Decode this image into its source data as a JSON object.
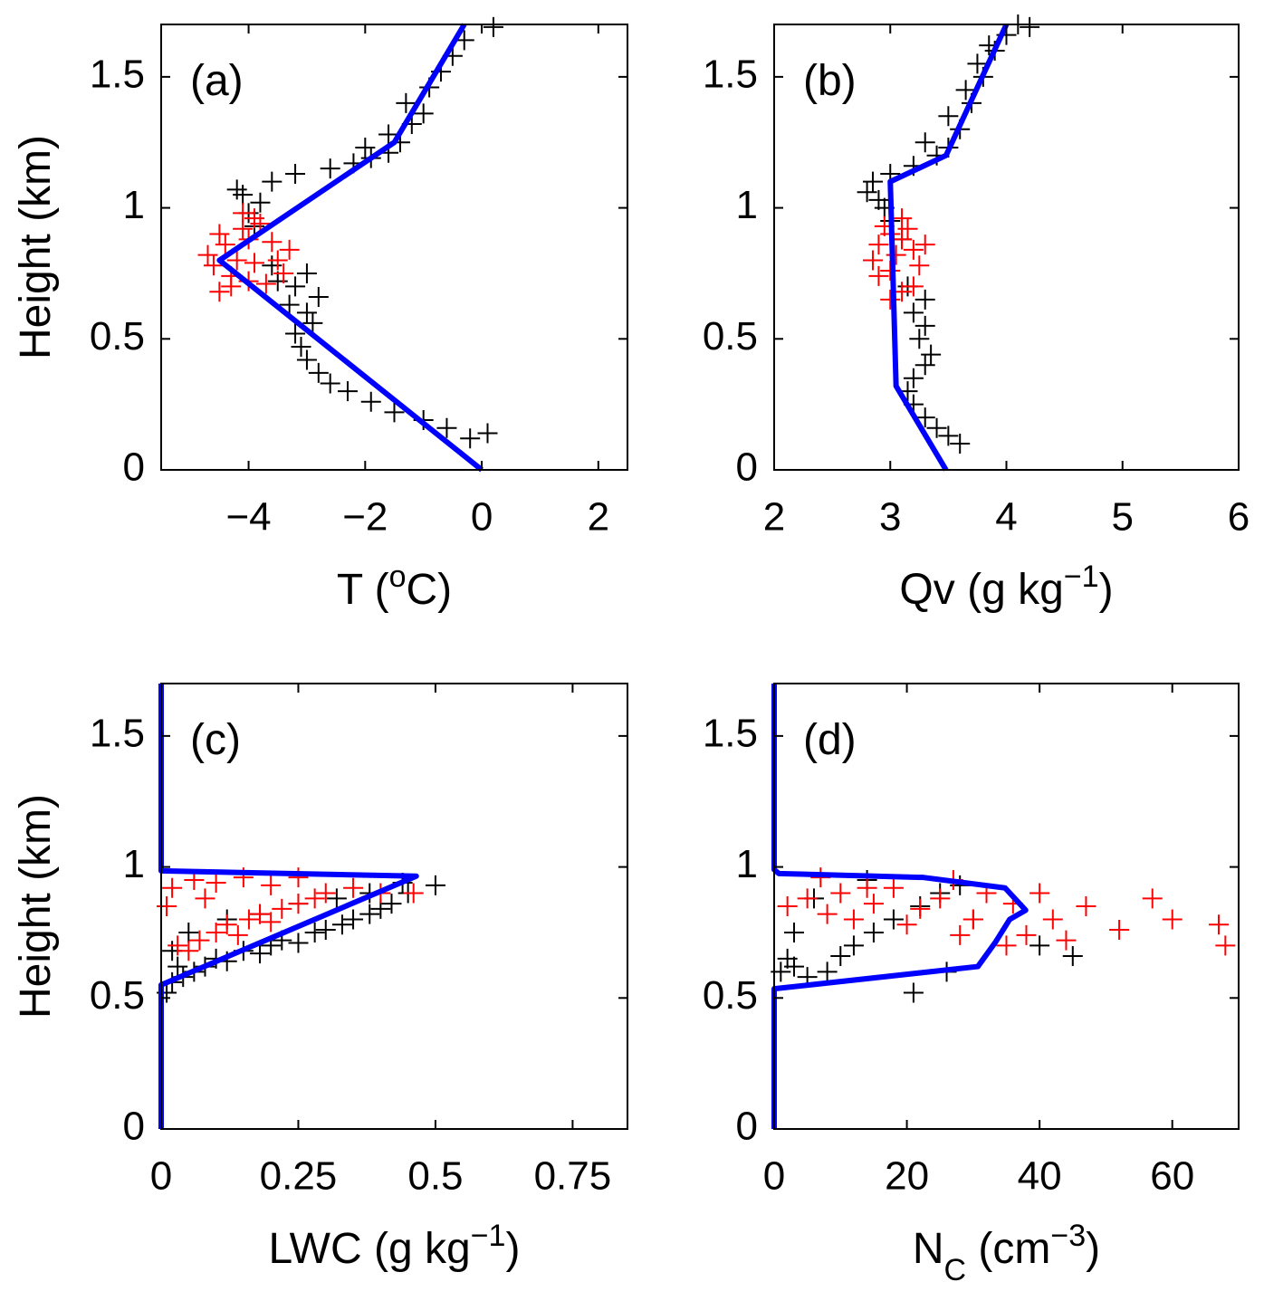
{
  "chart_data": [
    {
      "type": "scatter",
      "label": "(a)",
      "ylabel": "Height (km)",
      "xlabel": [
        {
          "text": "T ("
        },
        {
          "text": "o",
          "script": "sup"
        },
        {
          "text": "C)"
        }
      ],
      "xlim": [
        -5.5,
        2.5
      ],
      "ylim": [
        0,
        1.7
      ],
      "xticks": [
        {
          "value": -4,
          "label": "−4"
        },
        {
          "value": -2,
          "label": "−2"
        },
        0,
        2
      ],
      "yticks": [
        0,
        0.5,
        1,
        1.5
      ],
      "series": [
        {
          "mode": "marker",
          "color": "#000000",
          "x": [
            -0.2,
            0.1,
            -0.6,
            -1.0,
            -1.5,
            -1.9,
            -2.3,
            -2.6,
            -2.8,
            -3.0,
            -3.1,
            -3.2,
            -2.9,
            -3.0,
            -3.3,
            -2.8,
            -3.2,
            -3.5,
            -3.0,
            -3.6,
            -3.9,
            -4.0,
            -3.8,
            -4.1,
            -4.2,
            -3.6,
            -3.2,
            -2.6,
            -2.2,
            -1.9,
            -1.6,
            -2.0,
            -1.4,
            -1.6,
            -1.2,
            -1.0,
            -1.3,
            -0.9,
            -0.7,
            -0.5,
            -0.3,
            0.2
          ],
          "y": [
            0.12,
            0.14,
            0.16,
            0.19,
            0.22,
            0.26,
            0.3,
            0.33,
            0.37,
            0.42,
            0.47,
            0.52,
            0.56,
            0.6,
            0.63,
            0.66,
            0.7,
            0.72,
            0.75,
            0.78,
            0.93,
            0.98,
            1.02,
            1.05,
            1.07,
            1.1,
            1.13,
            1.15,
            1.17,
            1.19,
            1.21,
            1.23,
            1.25,
            1.28,
            1.32,
            1.36,
            1.4,
            1.46,
            1.52,
            1.58,
            1.64,
            1.69
          ]
        },
        {
          "mode": "marker",
          "color": "#ff0000",
          "x": [
            -4.5,
            -4.3,
            -4.0,
            -3.7,
            -3.4,
            -4.6,
            -4.2,
            -3.9,
            -3.5,
            -3.3,
            -4.7,
            -4.4,
            -4.0,
            -3.6,
            -4.5,
            -4.1,
            -3.8,
            -4.3,
            -3.9,
            -4.1
          ],
          "y": [
            0.68,
            0.7,
            0.72,
            0.71,
            0.75,
            0.78,
            0.8,
            0.79,
            0.8,
            0.84,
            0.82,
            0.86,
            0.88,
            0.87,
            0.9,
            0.92,
            0.94,
            0.74,
            0.96,
            0.98
          ]
        },
        {
          "mode": "line",
          "color": "#0000ff",
          "x": [
            0,
            -4.5,
            -1.5,
            -0.3
          ],
          "y": [
            0,
            0.8,
            1.25,
            1.7
          ]
        }
      ]
    },
    {
      "type": "scatter",
      "label": "(b)",
      "xlabel": [
        {
          "text": "Qv (g kg"
        },
        {
          "text": "−1",
          "script": "sup"
        },
        {
          "text": ")"
        }
      ],
      "xlim": [
        2,
        6
      ],
      "ylim": [
        0,
        1.7
      ],
      "xticks": [
        2,
        3,
        4,
        5,
        6
      ],
      "yticks": [
        0,
        0.5,
        1,
        1.5
      ],
      "series": [
        {
          "mode": "marker",
          "color": "#000000",
          "x": [
            3.6,
            3.5,
            3.4,
            3.3,
            3.2,
            3.15,
            3.2,
            3.3,
            3.35,
            3.25,
            3.3,
            3.2,
            3.3,
            3.15,
            3.1,
            3.0,
            2.95,
            2.9,
            2.8,
            2.85,
            3.0,
            3.2,
            3.4,
            3.5,
            3.3,
            3.6,
            3.5,
            3.7,
            3.65,
            3.8,
            3.75,
            3.9,
            3.85,
            4.0,
            4.1,
            4.2
          ],
          "y": [
            0.1,
            0.13,
            0.16,
            0.2,
            0.25,
            0.3,
            0.35,
            0.4,
            0.44,
            0.5,
            0.55,
            0.6,
            0.65,
            0.7,
            0.88,
            0.95,
            1.0,
            1.03,
            1.06,
            1.1,
            1.13,
            1.16,
            1.2,
            1.23,
            1.25,
            1.3,
            1.35,
            1.4,
            1.45,
            1.5,
            1.55,
            1.6,
            1.62,
            1.66,
            1.7,
            1.69
          ]
        },
        {
          "mode": "marker",
          "color": "#ff0000",
          "x": [
            3.0,
            3.1,
            3.2,
            2.9,
            3.0,
            3.25,
            2.85,
            3.05,
            3.2,
            2.9,
            3.1,
            3.3,
            3.0,
            2.95,
            3.15,
            3.1
          ],
          "y": [
            0.65,
            0.68,
            0.7,
            0.74,
            0.76,
            0.78,
            0.8,
            0.82,
            0.84,
            0.86,
            0.88,
            0.86,
            0.9,
            0.93,
            0.92,
            0.96
          ]
        },
        {
          "mode": "line",
          "color": "#0000ff",
          "x": [
            3.48,
            3.05,
            3.0,
            3.48,
            4.0
          ],
          "y": [
            0,
            0.32,
            1.1,
            1.2,
            1.7
          ]
        }
      ]
    },
    {
      "type": "scatter",
      "label": "(c)",
      "ylabel": "Height (km)",
      "xlabel": [
        {
          "text": "LWC (g kg"
        },
        {
          "text": "−1",
          "script": "sup"
        },
        {
          "text": ")"
        }
      ],
      "xlim": [
        0,
        0.85
      ],
      "ylim": [
        0,
        1.7
      ],
      "xticks": [
        0,
        0.25,
        0.5,
        0.75
      ],
      "yticks": [
        0,
        0.5,
        1,
        1.5
      ],
      "series": [
        {
          "mode": "marker",
          "color": "#000000",
          "x": [
            0.01,
            0.02,
            0.04,
            0.03,
            0.06,
            0.08,
            0.1,
            0.12,
            0.15,
            0.18,
            0.2,
            0.22,
            0.25,
            0.28,
            0.3,
            0.33,
            0.35,
            0.38,
            0.4,
            0.42,
            0.45,
            0.5,
            0.02,
            0.05,
            0.12,
            0.18,
            0.25,
            0.32,
            0.38,
            0.44
          ],
          "y": [
            0.52,
            0.56,
            0.58,
            0.62,
            0.6,
            0.62,
            0.65,
            0.64,
            0.68,
            0.67,
            0.7,
            0.72,
            0.71,
            0.75,
            0.76,
            0.78,
            0.8,
            0.82,
            0.84,
            0.86,
            0.9,
            0.93,
            0.68,
            0.75,
            0.8,
            0.82,
            0.86,
            0.88,
            0.9,
            0.94
          ]
        },
        {
          "mode": "marker",
          "color": "#ff0000",
          "x": [
            0.01,
            0.03,
            0.05,
            0.07,
            0.1,
            0.12,
            0.14,
            0.16,
            0.18,
            0.2,
            0.22,
            0.25,
            0.28,
            0.3,
            0.35,
            0.4,
            0.46,
            0.02,
            0.06,
            0.1,
            0.15,
            0.2,
            0.25,
            0.08
          ],
          "y": [
            0.85,
            0.7,
            0.68,
            0.72,
            0.75,
            0.78,
            0.74,
            0.8,
            0.82,
            0.79,
            0.84,
            0.86,
            0.88,
            0.9,
            0.92,
            0.9,
            0.9,
            0.92,
            0.95,
            0.94,
            0.96,
            0.93,
            0.96,
            0.88
          ]
        },
        {
          "mode": "line",
          "color": "#0000ff",
          "x": [
            0,
            0,
            0.465,
            0,
            0
          ],
          "y": [
            0,
            0.55,
            0.965,
            0.985,
            1.7
          ]
        }
      ]
    },
    {
      "type": "scatter",
      "label": "(d)",
      "xlabel": [
        {
          "text": "N"
        },
        {
          "text": "C",
          "script": "sub"
        },
        {
          "text": " (cm"
        },
        {
          "text": "−3",
          "script": "sup"
        },
        {
          "text": ")"
        }
      ],
      "xlim": [
        0,
        70
      ],
      "ylim": [
        0,
        1.7
      ],
      "xticks": [
        0,
        20,
        40,
        60
      ],
      "yticks": [
        0,
        0.5,
        1,
        1.5
      ],
      "series": [
        {
          "mode": "marker",
          "color": "#000000",
          "x": [
            1,
            2,
            3,
            5,
            8,
            10,
            12,
            15,
            18,
            22,
            25,
            28,
            30,
            21,
            3,
            6,
            14,
            45,
            40,
            26
          ],
          "y": [
            0.6,
            0.65,
            0.62,
            0.58,
            0.6,
            0.66,
            0.7,
            0.75,
            0.8,
            0.85,
            0.9,
            0.93,
            0.8,
            0.52,
            0.75,
            0.88,
            0.95,
            0.66,
            0.7,
            0.6
          ]
        },
        {
          "mode": "marker",
          "color": "#ff0000",
          "x": [
            2,
            5,
            8,
            10,
            12,
            15,
            18,
            20,
            22,
            25,
            28,
            30,
            32,
            35,
            36,
            38,
            40,
            42,
            44,
            47,
            52,
            57,
            60,
            67,
            68,
            27,
            14,
            7
          ],
          "y": [
            0.85,
            0.88,
            0.82,
            0.9,
            0.8,
            0.86,
            0.92,
            0.78,
            0.84,
            0.88,
            0.74,
            0.8,
            0.9,
            0.7,
            0.86,
            0.74,
            0.9,
            0.8,
            0.72,
            0.85,
            0.76,
            0.88,
            0.8,
            0.78,
            0.7,
            0.95,
            0.92,
            0.96
          ]
        },
        {
          "mode": "line",
          "color": "#0000ff",
          "x": [
            0,
            0,
            30.7,
            33.4,
            35.5,
            37.9,
            34.8,
            22.5,
            0.7,
            0,
            0
          ],
          "y": [
            0,
            0.535,
            0.62,
            0.715,
            0.8,
            0.835,
            0.92,
            0.96,
            0.975,
            0.99,
            1.7
          ]
        }
      ]
    }
  ]
}
